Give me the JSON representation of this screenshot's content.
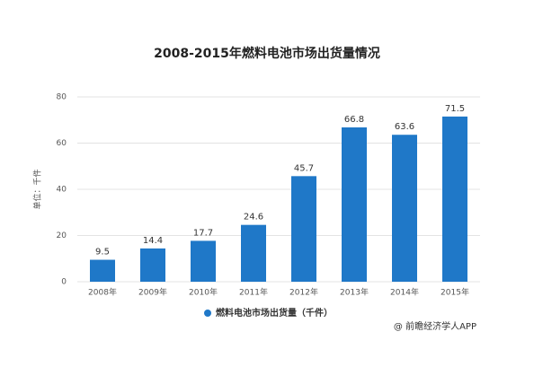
{
  "chart_data": {
    "type": "bar",
    "title": "2008-2015年燃料电池市场出货量情况",
    "y_label": "单位：千件",
    "categories": [
      "2008年",
      "2009年",
      "2010年",
      "2011年",
      "2012年",
      "2013年",
      "2014年",
      "2015年"
    ],
    "series": [
      {
        "name": "燃料电池市场出货量（千件）",
        "color": "#1f78c8",
        "values": [
          9.5,
          14.4,
          17.7,
          24.6,
          45.7,
          66.8,
          63.6,
          71.5
        ]
      }
    ],
    "ylim": [
      0,
      80
    ],
    "yticks": [
      0,
      20,
      40,
      60,
      80
    ],
    "grid": true,
    "source": "@ 前瞻经济学人APP"
  }
}
